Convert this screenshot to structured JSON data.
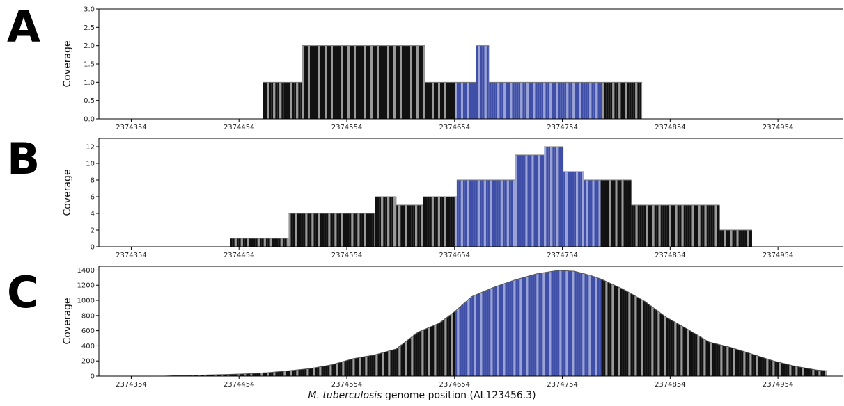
{
  "panel_labels": [
    "A",
    "B",
    "C"
  ],
  "colors": {
    "outside_bar": "#111111",
    "outside_stripe": "#9a9a9a",
    "region_bar": "#3f4fa8",
    "region_stripe": "#9aa3d8",
    "axis": "#000000"
  },
  "x_axis": {
    "label_species": "M. tuberculosis",
    "label_rest": " genome position (AL123456.3)",
    "ticks": [
      2374354,
      2374454,
      2374554,
      2374654,
      2374754,
      2374854,
      2374954
    ],
    "range": [
      2374324,
      2375014
    ]
  },
  "highlight_region": [
    2374654,
    2374790
  ],
  "chart_data": [
    {
      "type": "bar",
      "panel": "A",
      "ylabel": "Coverage",
      "ylim": [
        0,
        3
      ],
      "yticks": [
        "0.0",
        "0.5",
        "1.0",
        "1.5",
        "2.0",
        "2.5",
        "3.0"
      ],
      "ytick_values": [
        0,
        0.5,
        1,
        1.5,
        2,
        2.5,
        3
      ],
      "segments": [
        {
          "start": 2374476,
          "end": 2374512,
          "value": 1
        },
        {
          "start": 2374512,
          "end": 2374627,
          "value": 2
        },
        {
          "start": 2374627,
          "end": 2374674,
          "value": 1
        },
        {
          "start": 2374674,
          "end": 2374686,
          "value": 2
        },
        {
          "start": 2374686,
          "end": 2374828,
          "value": 1
        }
      ]
    },
    {
      "type": "bar",
      "panel": "B",
      "ylabel": "Coverage",
      "ylim": [
        0,
        13
      ],
      "yticks": [
        "0",
        "2",
        "4",
        "6",
        "8",
        "10",
        "12"
      ],
      "ytick_values": [
        0,
        2,
        4,
        6,
        8,
        10,
        12
      ],
      "segments": [
        {
          "start": 2374446,
          "end": 2374500,
          "value": 1
        },
        {
          "start": 2374500,
          "end": 2374580,
          "value": 4
        },
        {
          "start": 2374580,
          "end": 2374600,
          "value": 6
        },
        {
          "start": 2374600,
          "end": 2374625,
          "value": 5
        },
        {
          "start": 2374625,
          "end": 2374656,
          "value": 6
        },
        {
          "start": 2374656,
          "end": 2374710,
          "value": 8
        },
        {
          "start": 2374710,
          "end": 2374737,
          "value": 11
        },
        {
          "start": 2374737,
          "end": 2374755,
          "value": 12
        },
        {
          "start": 2374755,
          "end": 2374774,
          "value": 9
        },
        {
          "start": 2374774,
          "end": 2374818,
          "value": 8
        },
        {
          "start": 2374818,
          "end": 2374900,
          "value": 5
        },
        {
          "start": 2374900,
          "end": 2374930,
          "value": 2
        }
      ]
    },
    {
      "type": "area",
      "panel": "C",
      "ylabel": "Coverage",
      "ylim": [
        0,
        1450
      ],
      "yticks": [
        "0",
        "200",
        "400",
        "600",
        "800",
        "1000",
        "1200",
        "1400"
      ],
      "ytick_values": [
        0,
        200,
        400,
        600,
        800,
        1000,
        1200,
        1400
      ],
      "points": [
        [
          2374385,
          0
        ],
        [
          2374400,
          8
        ],
        [
          2374420,
          14
        ],
        [
          2374440,
          20
        ],
        [
          2374460,
          30
        ],
        [
          2374480,
          45
        ],
        [
          2374500,
          70
        ],
        [
          2374520,
          100
        ],
        [
          2374540,
          150
        ],
        [
          2374560,
          230
        ],
        [
          2374580,
          280
        ],
        [
          2374600,
          360
        ],
        [
          2374620,
          580
        ],
        [
          2374640,
          700
        ],
        [
          2374654,
          850
        ],
        [
          2374670,
          1050
        ],
        [
          2374690,
          1170
        ],
        [
          2374710,
          1270
        ],
        [
          2374730,
          1350
        ],
        [
          2374750,
          1395
        ],
        [
          2374765,
          1385
        ],
        [
          2374780,
          1330
        ],
        [
          2374790,
          1280
        ],
        [
          2374810,
          1150
        ],
        [
          2374830,
          990
        ],
        [
          2374850,
          780
        ],
        [
          2374870,
          620
        ],
        [
          2374890,
          450
        ],
        [
          2374910,
          380
        ],
        [
          2374930,
          290
        ],
        [
          2374950,
          200
        ],
        [
          2374970,
          130
        ],
        [
          2374990,
          80
        ],
        [
          2375000,
          70
        ]
      ]
    }
  ]
}
